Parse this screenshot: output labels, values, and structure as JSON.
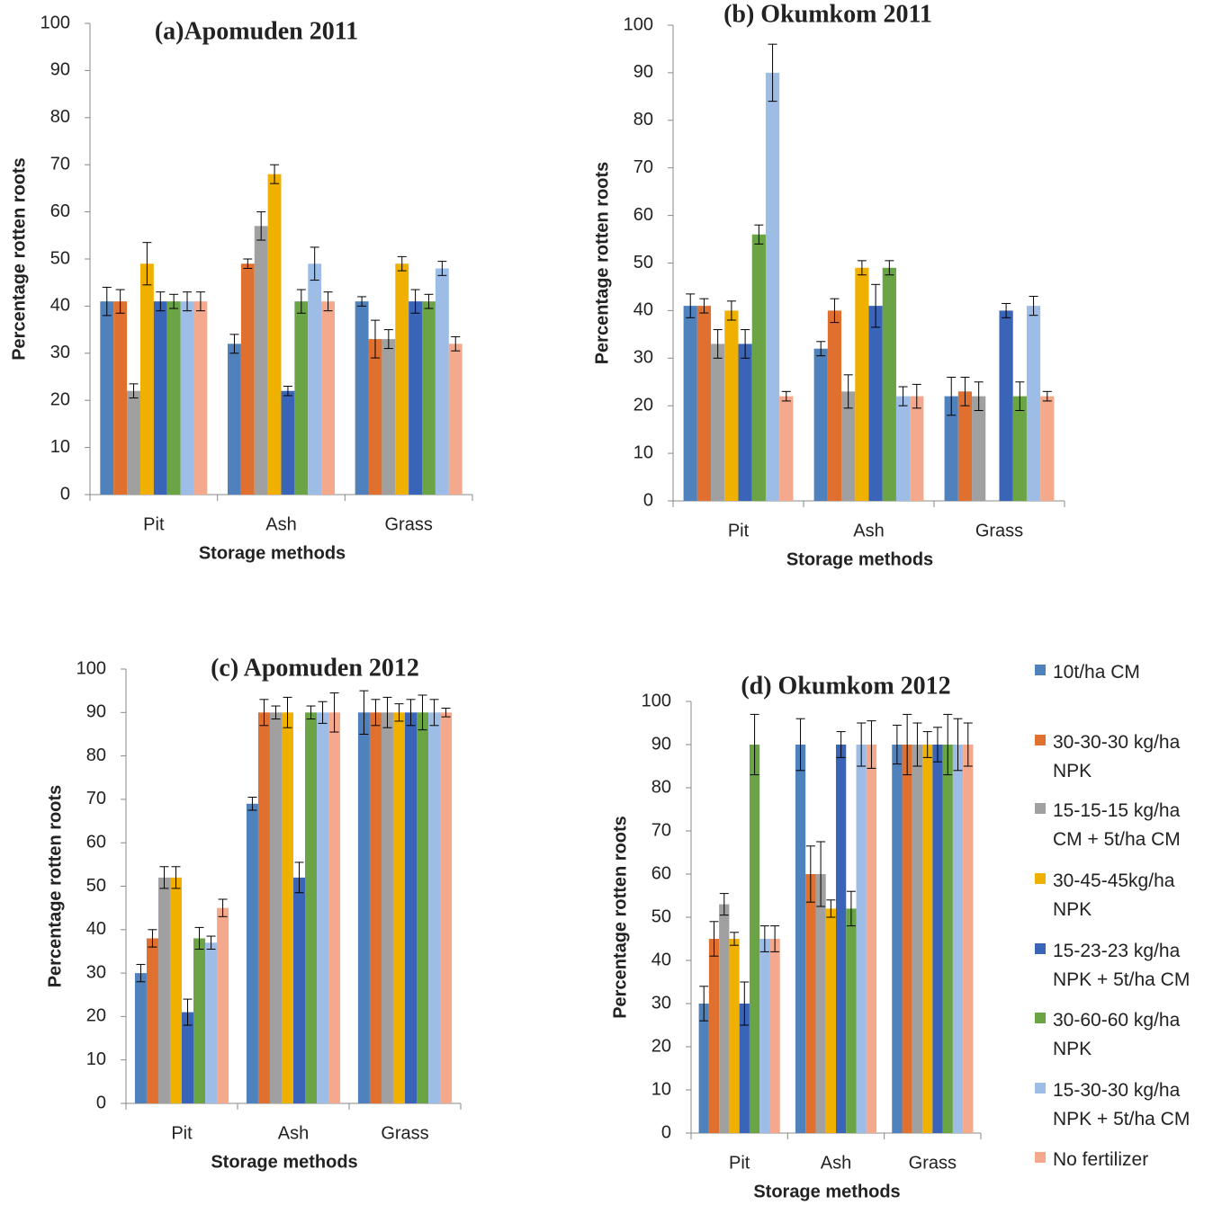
{
  "legend": [
    {
      "name": "10t/ha CM",
      "color": "#4f81bd"
    },
    {
      "name": "30-30-30 kg/ha NPK",
      "color": "#e07030"
    },
    {
      "name": "15-15-15 kg/ha CM + 5t/ha CM",
      "color": "#a0a0a0"
    },
    {
      "name": "30-45-45kg/ha NPK",
      "color": "#f0b000"
    },
    {
      "name": "15-23-23 kg/ha NPK + 5t/ha CM",
      "color": "#3a64b8"
    },
    {
      "name": "30-60-60 kg/ha NPK",
      "color": "#6aa444"
    },
    {
      "name": "15-30-30 kg/ha NPK + 5t/ha CM",
      "color": "#9ebde6"
    },
    {
      "name": "No fertilizer",
      "color": "#f4a88c"
    }
  ],
  "chart_data": [
    {
      "type": "bar",
      "title": "(a)Apomuden 2011",
      "xlabel": "Storage methods",
      "ylabel": "Percentage rotten roots",
      "categories": [
        "Pit",
        "Ash",
        "Grass"
      ],
      "ylim": [
        0,
        100
      ],
      "yticks": [
        0,
        10,
        20,
        30,
        40,
        50,
        60,
        70,
        80,
        90,
        100
      ],
      "series": [
        {
          "values": [
            41,
            32,
            41
          ],
          "errors": [
            3,
            2,
            1
          ]
        },
        {
          "values": [
            41,
            49,
            33
          ],
          "errors": [
            2.5,
            1,
            4
          ]
        },
        {
          "values": [
            22,
            57,
            33
          ],
          "errors": [
            1.5,
            3,
            2
          ]
        },
        {
          "values": [
            49,
            68,
            49
          ],
          "errors": [
            4.5,
            2,
            1.5
          ]
        },
        {
          "values": [
            41,
            22,
            41
          ],
          "errors": [
            2,
            1,
            2.5
          ]
        },
        {
          "values": [
            41,
            41,
            41
          ],
          "errors": [
            1.5,
            2.5,
            1.5
          ]
        },
        {
          "values": [
            41,
            49,
            48
          ],
          "errors": [
            2,
            3.5,
            1.5
          ]
        },
        {
          "values": [
            41,
            41,
            32
          ],
          "errors": [
            2,
            2,
            1.5
          ]
        }
      ]
    },
    {
      "type": "bar",
      "title": "(b) Okumkom 2011",
      "xlabel": "Storage methods",
      "ylabel": "Percentage rotten roots",
      "categories": [
        "Pit",
        "Ash",
        "Grass"
      ],
      "ylim": [
        0,
        100
      ],
      "yticks": [
        0,
        10,
        20,
        30,
        40,
        50,
        60,
        70,
        80,
        90,
        100
      ],
      "series": [
        {
          "values": [
            41,
            32,
            22
          ],
          "errors": [
            2.5,
            1.5,
            4
          ]
        },
        {
          "values": [
            41,
            40,
            23
          ],
          "errors": [
            1.5,
            2.5,
            3
          ]
        },
        {
          "values": [
            33,
            23,
            22
          ],
          "errors": [
            3,
            3.5,
            3
          ]
        },
        {
          "values": [
            40,
            49,
            null
          ],
          "errors": [
            2,
            1.5,
            null
          ]
        },
        {
          "values": [
            33,
            41,
            40
          ],
          "errors": [
            3,
            4.5,
            1.5
          ]
        },
        {
          "values": [
            56,
            49,
            22
          ],
          "errors": [
            2,
            1.5,
            3
          ]
        },
        {
          "values": [
            90,
            22,
            41
          ],
          "errors": [
            6,
            2,
            2
          ]
        },
        {
          "values": [
            22,
            22,
            22
          ],
          "errors": [
            1,
            2.5,
            1
          ]
        }
      ]
    },
    {
      "type": "bar",
      "title": "(c) Apomuden 2012",
      "xlabel": "Storage methods",
      "ylabel": "Percentage rotten roots",
      "categories": [
        "Pit",
        "Ash",
        "Grass"
      ],
      "ylim": [
        0,
        100
      ],
      "yticks": [
        0,
        10,
        20,
        30,
        40,
        50,
        60,
        70,
        80,
        90,
        100
      ],
      "series": [
        {
          "values": [
            30,
            69,
            90
          ],
          "errors": [
            2,
            1.5,
            5
          ]
        },
        {
          "values": [
            38,
            90,
            90
          ],
          "errors": [
            2,
            3,
            3
          ]
        },
        {
          "values": [
            52,
            90,
            90
          ],
          "errors": [
            2.5,
            1.5,
            3.5
          ]
        },
        {
          "values": [
            52,
            90,
            90
          ],
          "errors": [
            2.5,
            3.5,
            2
          ]
        },
        {
          "values": [
            21,
            52,
            90
          ],
          "errors": [
            3,
            3.5,
            3
          ]
        },
        {
          "values": [
            38,
            90,
            90
          ],
          "errors": [
            2.5,
            1.5,
            4
          ]
        },
        {
          "values": [
            37,
            90,
            90
          ],
          "errors": [
            1.5,
            2.5,
            3
          ]
        },
        {
          "values": [
            45,
            90,
            90
          ],
          "errors": [
            2,
            4.5,
            1
          ]
        }
      ]
    },
    {
      "type": "bar",
      "title": "(d) Okumkom 2012",
      "xlabel": "Storage methods",
      "ylabel": "Percentage rotten roots",
      "categories": [
        "Pit",
        "Ash",
        "Grass"
      ],
      "ylim": [
        0,
        100
      ],
      "yticks": [
        0,
        10,
        20,
        30,
        40,
        50,
        60,
        70,
        80,
        90,
        100
      ],
      "series": [
        {
          "values": [
            30,
            90,
            90
          ],
          "errors": [
            4,
            6,
            4.5
          ]
        },
        {
          "values": [
            45,
            60,
            90
          ],
          "errors": [
            4,
            6.5,
            7
          ]
        },
        {
          "values": [
            53,
            60,
            90
          ],
          "errors": [
            2.5,
            7.5,
            5
          ]
        },
        {
          "values": [
            45,
            52,
            90
          ],
          "errors": [
            1.5,
            2,
            3
          ]
        },
        {
          "values": [
            30,
            90,
            90
          ],
          "errors": [
            5,
            3,
            4
          ]
        },
        {
          "values": [
            90,
            52,
            90
          ],
          "errors": [
            7,
            4,
            7
          ]
        },
        {
          "values": [
            45,
            90,
            90
          ],
          "errors": [
            3,
            5,
            6
          ]
        },
        {
          "values": [
            45,
            90,
            90
          ],
          "errors": [
            3,
            5.5,
            5
          ]
        }
      ]
    }
  ]
}
